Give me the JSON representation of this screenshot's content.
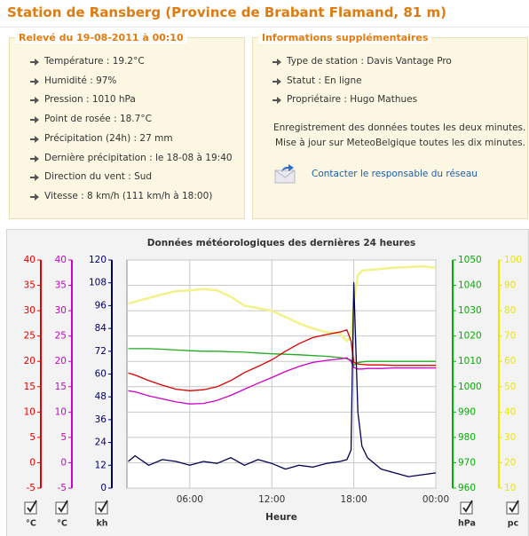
{
  "header": {
    "title": "Station de Ransberg (Province de Brabant Flamand, 81 m)"
  },
  "reading": {
    "title": "Relevé du 19-08-2011 à 00:10",
    "items": [
      "Température : 19.2°C",
      "Humidité : 97%",
      "Pression : 1010 hPa",
      "Point de rosée : 18.7°C",
      "Précipitation (24h) : 27 mm",
      "Dernière précipitation : le 18-08 à 19:40",
      "Direction du vent : Sud",
      "Vitesse : 8 km/h (111 km/h à 18:00)"
    ]
  },
  "info": {
    "title": "Informations supplémentaires",
    "items": [
      "Type de station : Davis Vantage Pro",
      "Statut : En ligne",
      "Propriétaire : Hugo Mathues"
    ],
    "notes": [
      "Enregistrement des données toutes les deux minutes.",
      "Mise à jour sur MeteoBelgique toutes les dix minutes."
    ],
    "link": "Contacter le responsable du réseau"
  },
  "chart_data": {
    "type": "line",
    "title": "Données météorologiques des dernières 24 heures",
    "x_label": "Heure",
    "x": [
      1.5,
      2,
      3,
      4,
      5,
      6,
      7,
      8,
      9,
      10,
      11,
      12,
      13,
      14,
      15,
      16,
      17,
      17.5,
      17.8,
      18,
      18.3,
      18.6,
      19,
      20,
      21,
      22,
      23,
      24
    ],
    "xlim": [
      1.4,
      24
    ],
    "xticks": [
      {
        "value": 6,
        "label": "06:00"
      },
      {
        "value": 12,
        "label": "12:00"
      },
      {
        "value": 18,
        "label": "18:00"
      },
      {
        "value": 24,
        "label": "00:00"
      }
    ],
    "grid": true,
    "axes": [
      {
        "unit": "°C",
        "color": "#e00000",
        "side": "left",
        "lim": [
          -5,
          40
        ],
        "ticks": [
          -5,
          0,
          5,
          10,
          15,
          20,
          25,
          30,
          35,
          40
        ]
      },
      {
        "unit": "°C",
        "color": "#cc00cc",
        "side": "left",
        "lim": [
          -5,
          40
        ],
        "ticks": [
          -5,
          0,
          5,
          10,
          15,
          20,
          25,
          30,
          35,
          40
        ]
      },
      {
        "unit": "kh",
        "color": "#000066",
        "side": "left",
        "lim": [
          0,
          120
        ],
        "ticks": [
          0,
          12,
          24,
          36,
          48,
          60,
          72,
          84,
          96,
          108,
          120
        ]
      },
      {
        "unit": "hPa",
        "color": "#00b000",
        "side": "right",
        "lim": [
          960,
          1050
        ],
        "ticks": [
          960,
          970,
          980,
          990,
          1000,
          1010,
          1020,
          1030,
          1040,
          1050
        ]
      },
      {
        "unit": "pc",
        "color": "#e8e800",
        "side": "right",
        "lim": [
          10,
          100
        ],
        "ticks": [
          10,
          20,
          30,
          40,
          50,
          60,
          70,
          80,
          90,
          100
        ]
      }
    ],
    "series": [
      {
        "color": "#dd0000",
        "axis": 0,
        "values": [
          17.7,
          17.3,
          16.2,
          15.3,
          14.5,
          14.2,
          14.4,
          15,
          16.2,
          17.8,
          19,
          20.3,
          22,
          23.5,
          24.7,
          25.3,
          25.8,
          26.2,
          24,
          19.8,
          19.5,
          19.4,
          19.3,
          19.3,
          19.2,
          19.2,
          19.2,
          19.2
        ]
      },
      {
        "color": "#cc00cc",
        "axis": 1,
        "values": [
          14.2,
          14,
          13.2,
          12.6,
          12,
          11.6,
          11.7,
          12.3,
          13.3,
          14.5,
          15.7,
          16.8,
          18,
          19,
          19.8,
          20.2,
          20.5,
          20.7,
          20,
          18.8,
          18.5,
          18.5,
          18.6,
          18.6,
          18.7,
          18.7,
          18.7,
          18.7
        ]
      },
      {
        "color": "#000055",
        "axis": 2,
        "values": [
          14,
          17,
          12,
          15,
          14,
          12,
          14,
          13,
          16,
          12,
          15,
          13,
          10,
          12,
          11,
          13,
          14,
          15,
          20,
          108,
          40,
          22,
          16,
          10,
          8,
          6,
          7,
          8
        ]
      },
      {
        "color": "#22aa22",
        "axis": 3,
        "values": [
          1015,
          1015,
          1015,
          1014.8,
          1014.5,
          1014.2,
          1014,
          1014,
          1013.8,
          1013.6,
          1013.3,
          1013,
          1012.8,
          1012.6,
          1012.3,
          1012,
          1011.5,
          1011,
          1010.5,
          1008.5,
          1009.5,
          1009.8,
          1010,
          1010,
          1010,
          1010,
          1010,
          1010
        ]
      },
      {
        "color": "#f2f28a",
        "axis": 4,
        "values": [
          82.8,
          83.5,
          85,
          86.5,
          87.7,
          88,
          88.5,
          88,
          85.5,
          82,
          81,
          80,
          77.5,
          75,
          73,
          71.5,
          71,
          68,
          70,
          83.5,
          94,
          95.8,
          96,
          96.5,
          97,
          97.2,
          97.5,
          97
        ]
      }
    ]
  }
}
